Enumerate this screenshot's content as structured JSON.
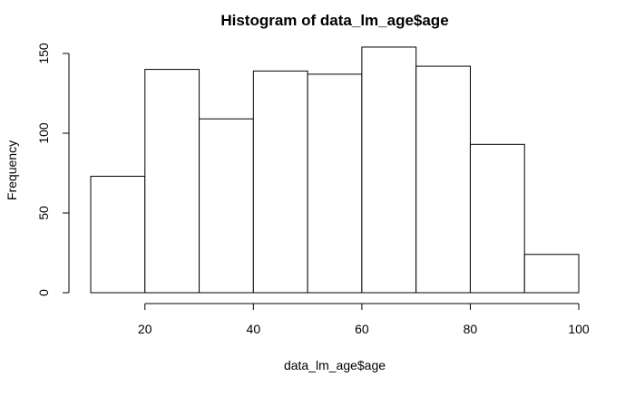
{
  "chart_data": {
    "type": "bar",
    "title": "Histogram of data_lm_age$age",
    "xlabel": "data_lm_age$age",
    "ylabel": "Frequency",
    "bins": [
      {
        "from": 10,
        "to": 20,
        "count": 73
      },
      {
        "from": 20,
        "to": 30,
        "count": 140
      },
      {
        "from": 30,
        "to": 40,
        "count": 109
      },
      {
        "from": 40,
        "to": 50,
        "count": 139
      },
      {
        "from": 50,
        "to": 60,
        "count": 137
      },
      {
        "from": 60,
        "to": 70,
        "count": 154
      },
      {
        "from": 70,
        "to": 80,
        "count": 142
      },
      {
        "from": 80,
        "to": 90,
        "count": 93
      },
      {
        "from": 90,
        "to": 100,
        "count": 24
      }
    ],
    "x_ticks": [
      20,
      40,
      60,
      80,
      100
    ],
    "y_ticks": [
      0,
      50,
      100,
      150
    ],
    "xlim": [
      10,
      100
    ],
    "ylim": [
      0,
      154
    ],
    "grid": false,
    "legend": "none"
  }
}
